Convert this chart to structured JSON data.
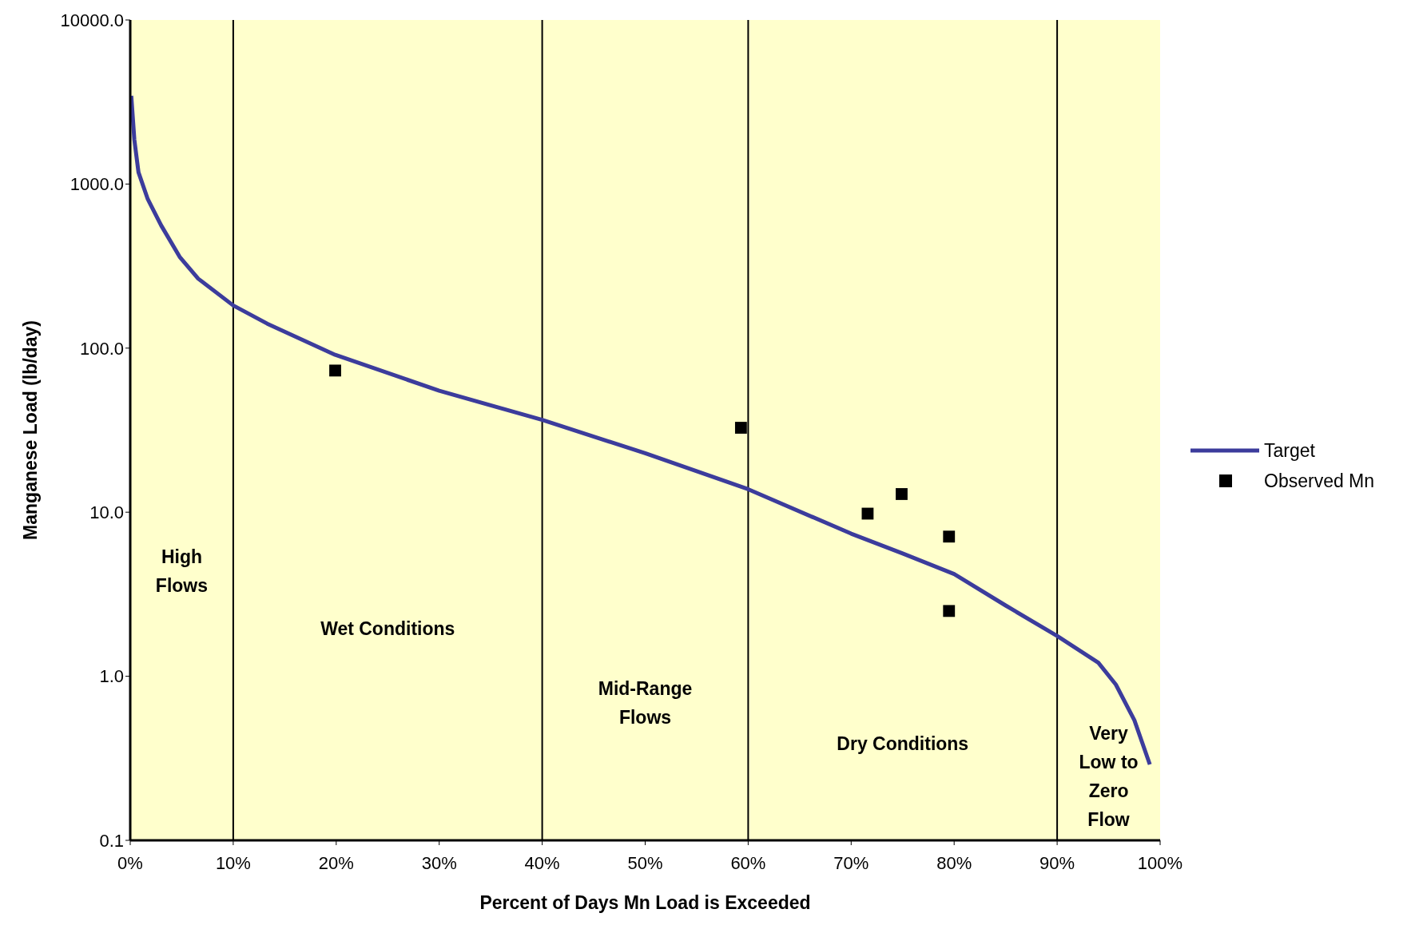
{
  "chart_data": {
    "type": "line",
    "xlabel": "Percent of Days Mn Load is Exceeded",
    "ylabel": "Manganese Load (lb/day)",
    "log": "y",
    "xlim": [
      0,
      100
    ],
    "xticks": [
      {
        "value": 0,
        "label": "0%"
      },
      {
        "value": 10,
        "label": "10%"
      },
      {
        "value": 20,
        "label": "20%"
      },
      {
        "value": 30,
        "label": "30%"
      },
      {
        "value": 40,
        "label": "40%"
      },
      {
        "value": 50,
        "label": "50%"
      },
      {
        "value": 60,
        "label": "60%"
      },
      {
        "value": 70,
        "label": "70%"
      },
      {
        "value": 80,
        "label": "80%"
      },
      {
        "value": 90,
        "label": "90%"
      },
      {
        "value": 100,
        "label": "100%"
      }
    ],
    "ylim": [
      0.1,
      10000
    ],
    "yticks": [
      {
        "value": 0.1,
        "label": "0.1"
      },
      {
        "value": 1,
        "label": "1.0"
      },
      {
        "value": 10,
        "label": "10.0"
      },
      {
        "value": 100,
        "label": "100.0"
      },
      {
        "value": 1000,
        "label": "1000.0"
      },
      {
        "value": 10000,
        "label": "10000.0"
      }
    ],
    "series": [
      {
        "name": "Target",
        "color": "#3c3c9c",
        "marker": "none",
        "line_style": "solid",
        "x": [
          0.1,
          0.4,
          0.8,
          1.7,
          3,
          4.8,
          6.6,
          10,
          13.3,
          19.9,
          30,
          40,
          50,
          60,
          70,
          75,
          80,
          85,
          90,
          94,
          95.7,
          97.5,
          99
        ],
        "values": [
          3450,
          1860,
          1180,
          810,
          560,
          360,
          265,
          182,
          141,
          91,
          55,
          36.5,
          22.9,
          13.8,
          7.4,
          5.6,
          4.2,
          2.7,
          1.76,
          1.21,
          0.89,
          0.54,
          0.29
        ]
      },
      {
        "name": "Observed Mn",
        "type": "scatter",
        "color": "#000000",
        "marker": "square",
        "x": [
          19.9,
          59.3,
          71.6,
          74.9,
          79.5,
          79.5
        ],
        "values": [
          73,
          32.7,
          9.8,
          12.9,
          7.1,
          2.5
        ]
      }
    ],
    "ref_lines": [
      {
        "axis": "x",
        "value": 10,
        "color": "#000000"
      },
      {
        "axis": "x",
        "value": 40,
        "color": "#000000"
      },
      {
        "axis": "x",
        "value": 60,
        "color": "#000000"
      },
      {
        "axis": "x",
        "value": 90,
        "color": "#000000"
      }
    ],
    "bands": [
      {
        "axis": "x",
        "from": 0,
        "to": 10,
        "label": "High Flows",
        "color": "#ffffcc"
      },
      {
        "axis": "x",
        "from": 10,
        "to": 40,
        "label": "Wet Conditions",
        "color": "#ffffcc"
      },
      {
        "axis": "x",
        "from": 40,
        "to": 60,
        "label": "Mid-Range Flows",
        "color": "#ffffcc"
      },
      {
        "axis": "x",
        "from": 60,
        "to": 90,
        "label": "Dry Conditions",
        "color": "#ffffcc"
      },
      {
        "axis": "x",
        "from": 90,
        "to": 100,
        "label": "Very Low to Zero Flow",
        "color": "#ffffcc"
      }
    ],
    "grid": false,
    "legend": "right"
  }
}
